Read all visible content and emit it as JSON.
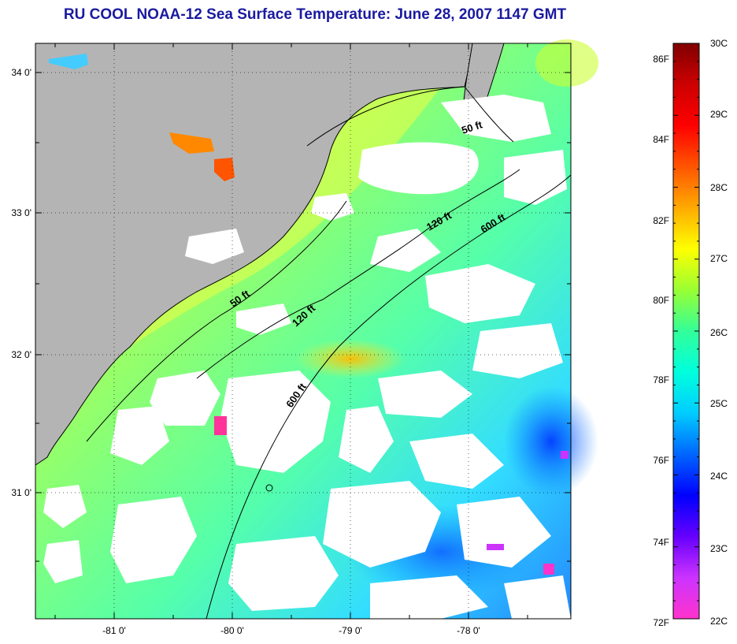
{
  "title": "RU COOL  NOAA-12  Sea Surface Temperature:  June 28, 2007 1147 GMT",
  "map": {
    "lat_labels": [
      "34 0'",
      "33 0'",
      "32 0'",
      "31 0'"
    ],
    "lon_labels": [
      "-81 0'",
      "-80 0'",
      "-79 0'",
      "-78 0'"
    ],
    "contour_labels": [
      {
        "text": "50 ft",
        "isobath": "50 ft"
      },
      {
        "text": "120 ft",
        "isobath": "120 ft"
      },
      {
        "text": "600 ft",
        "isobath": "600 ft"
      },
      {
        "text": "50 ft",
        "isobath": "50 ft"
      },
      {
        "text": "120 ft",
        "isobath": "120 ft"
      },
      {
        "text": "600 ft",
        "isobath": "600 ft"
      }
    ],
    "colors": {
      "land": "#b4b4b4",
      "cloud": "#ffffff",
      "coastline": "#000000"
    }
  },
  "colorbar": {
    "celsius_labels": [
      "30C",
      "29C",
      "28C",
      "27C",
      "26C",
      "25C",
      "24C",
      "23C",
      "22C"
    ],
    "fahrenheit_labels": [
      "86F",
      "84F",
      "82F",
      "80F",
      "78F",
      "76F",
      "74F",
      "72F"
    ],
    "celsius_range": [
      22,
      30
    ],
    "colors": [
      "#ff33cc",
      "#cc33ff",
      "#6600ff",
      "#0000ff",
      "#0066ff",
      "#00ccff",
      "#00ffdd",
      "#33ff99",
      "#99ff33",
      "#ffff00",
      "#ffaa00",
      "#ff5500",
      "#ff0000",
      "#cc0000",
      "#800000"
    ]
  }
}
